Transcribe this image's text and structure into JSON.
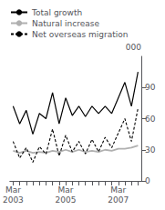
{
  "chart_data": {
    "type": "line",
    "ylabel": "000",
    "categories": [
      "Mar\n2003",
      null,
      null,
      null,
      null,
      null,
      null,
      null,
      "Mar\n2005",
      null,
      null,
      null,
      null,
      null,
      null,
      null,
      "Mar\n2007",
      null,
      null,
      null
    ],
    "series": [
      {
        "name": "Total growth",
        "color": "#000000",
        "line_style": "solid",
        "values": [
          72,
          55,
          68,
          45,
          65,
          60,
          85,
          55,
          80,
          63,
          72,
          62,
          72,
          65,
          72,
          65,
          80,
          95,
          72,
          105
        ]
      },
      {
        "name": "Natural increase",
        "color": "#b0b0b0",
        "line_style": "solid",
        "values": [
          29,
          27,
          29,
          27,
          28,
          27,
          29,
          28,
          30,
          28,
          30,
          28,
          29,
          28,
          30,
          29,
          31,
          31,
          32,
          34
        ]
      },
      {
        "name": "Net overseas migration",
        "color": "#000000",
        "line_style": "dashed",
        "values": [
          38,
          22,
          32,
          18,
          33,
          26,
          50,
          24,
          44,
          28,
          38,
          26,
          40,
          28,
          42,
          32,
          46,
          60,
          38,
          70
        ]
      }
    ],
    "ylim": [
      0,
      120
    ],
    "yticks": [
      0,
      30,
      60,
      90
    ],
    "legend": "upper left",
    "grid": false
  }
}
